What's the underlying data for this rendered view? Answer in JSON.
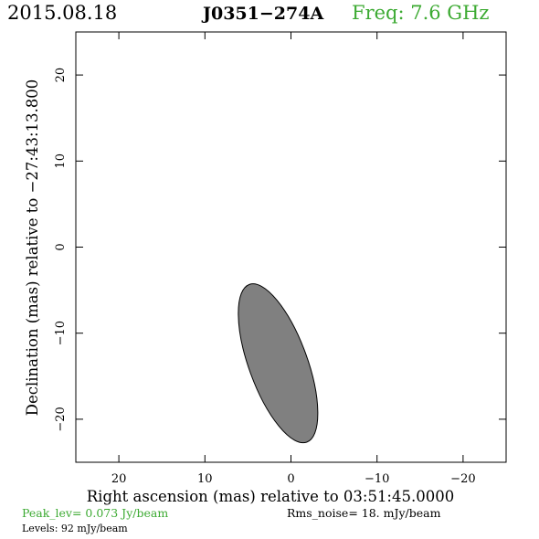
{
  "header": {
    "date": "2015.08.18",
    "source": "J0351−274A",
    "frequency": "Freq: 7.6 GHz"
  },
  "footer": {
    "peak": "Peak_lev=  0.073 Jy/beam",
    "rms": "Rms_noise=  18. mJy/beam",
    "levels": "Levels:  92 mJy/beam"
  },
  "colors": {
    "accent": "#3caa32",
    "component_fill": "#808080",
    "frame": "#000000"
  },
  "chart_data": {
    "type": "scatter",
    "title": "J0351−274A",
    "xlabel": "Right ascension (mas) relative to 03:51:45.0000",
    "ylabel": "Declination (mas) relative to −27:43:13.800",
    "xlim": [
      25,
      -25
    ],
    "ylim": [
      -25,
      25
    ],
    "xticks": [
      20,
      10,
      0,
      -10,
      -20
    ],
    "yticks": [
      20,
      10,
      0,
      -10,
      -20
    ],
    "xtick_labels": [
      "20",
      "10",
      "0",
      "−10",
      "−20"
    ],
    "ytick_labels": [
      "20",
      "10",
      "0",
      "−10",
      "−20"
    ],
    "grid": false,
    "components": [
      {
        "shape": "ellipse",
        "x": 1.5,
        "y": -13.5,
        "major_axis": 19.5,
        "minor_axis": 6.8,
        "position_angle_deg": -20
      }
    ]
  }
}
